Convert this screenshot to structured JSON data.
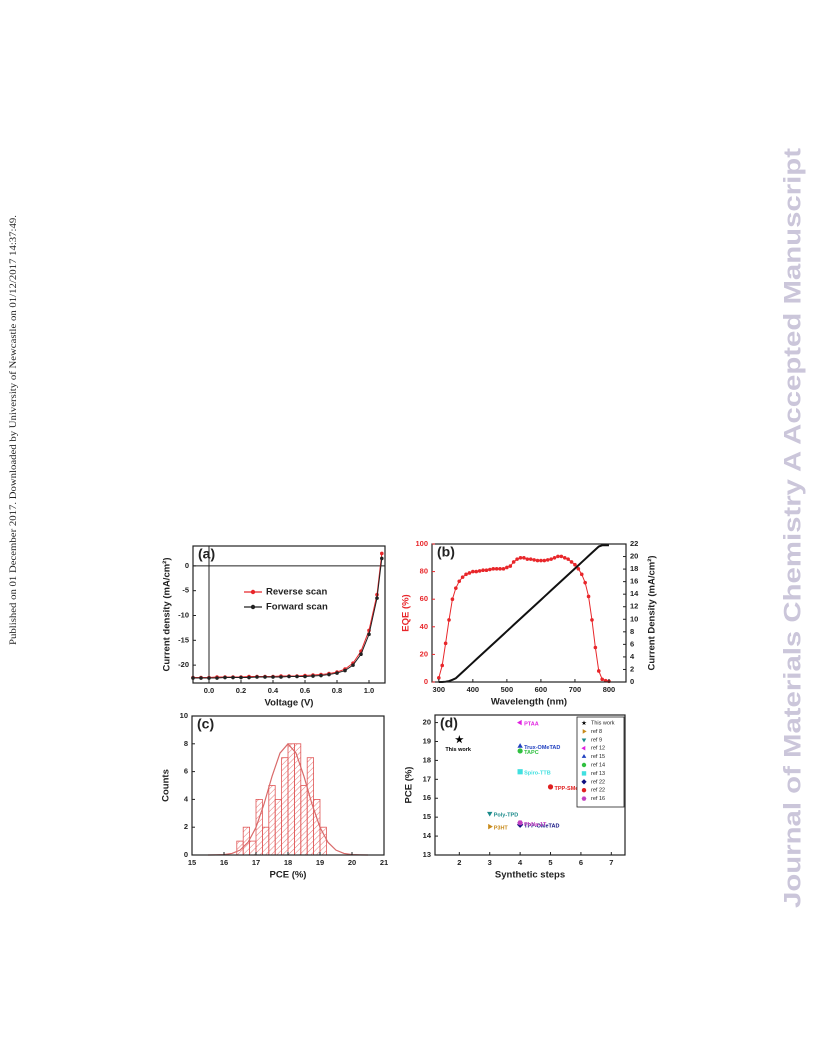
{
  "side_note": "Published on 01 December 2017. Downloaded by University of Newcastle on 01/12/2017 14:37:49.",
  "journal_watermark": "Journal of Materials Chemistry A Accepted Manuscript",
  "chart_data": [
    {
      "type": "line",
      "panel_label": "(a)",
      "x_label": "Voltage (V)",
      "y_label": "Current density (mA/cm²)",
      "x": [
        -0.1,
        -0.05,
        0,
        0.05,
        0.1,
        0.15,
        0.2,
        0.25,
        0.3,
        0.35,
        0.4,
        0.45,
        0.5,
        0.55,
        0.6,
        0.65,
        0.7,
        0.75,
        0.8,
        0.85,
        0.9,
        0.95,
        1.0,
        1.05,
        1.08
      ],
      "series": [
        {
          "name": "Reverse scan",
          "color": "#e8262a",
          "marker": "circle",
          "values": [
            -22.5,
            -22.5,
            -22.5,
            -22.4,
            -22.4,
            -22.4,
            -22.4,
            -22.3,
            -22.3,
            -22.3,
            -22.3,
            -22.2,
            -22.2,
            -22.2,
            -22.1,
            -22.0,
            -21.9,
            -21.7,
            -21.4,
            -20.8,
            -19.6,
            -17.2,
            -13.0,
            -5.8,
            2.5
          ]
        },
        {
          "name": "Forward scan",
          "color": "#222222",
          "marker": "circle",
          "values": [
            -22.6,
            -22.6,
            -22.6,
            -22.6,
            -22.5,
            -22.5,
            -22.5,
            -22.5,
            -22.4,
            -22.4,
            -22.4,
            -22.4,
            -22.3,
            -22.3,
            -22.3,
            -22.2,
            -22.1,
            -21.9,
            -21.6,
            -21.1,
            -20.0,
            -17.8,
            -13.8,
            -6.5,
            1.5
          ]
        }
      ],
      "xlim": [
        -0.1,
        1.1
      ],
      "xticks": [
        {
          "value": 0,
          "label": "0.0"
        },
        {
          "value": 0.2,
          "label": "0.2"
        },
        {
          "value": 0.4,
          "label": "0.4"
        },
        {
          "value": 0.6,
          "label": "0.6"
        },
        {
          "value": 0.8,
          "label": "0.8"
        },
        {
          "value": 1,
          "label": "1.0"
        }
      ],
      "ylim": [
        -23.6,
        4
      ],
      "yticks": [
        -20,
        -15,
        -10,
        -5,
        0
      ],
      "legend": "upper center"
    },
    {
      "type": "line",
      "panel_label": "(b)",
      "x_label": "Wavelength (nm)",
      "y_label": "EQE (%)",
      "y2_label": "Current Density (mA/cm²)",
      "x": [
        300,
        310,
        320,
        330,
        340,
        350,
        360,
        370,
        380,
        390,
        400,
        410,
        420,
        430,
        440,
        450,
        460,
        470,
        480,
        490,
        500,
        510,
        520,
        530,
        540,
        550,
        560,
        570,
        580,
        590,
        600,
        610,
        620,
        630,
        640,
        650,
        660,
        670,
        680,
        690,
        700,
        710,
        720,
        730,
        740,
        750,
        760,
        770,
        780,
        790,
        800
      ],
      "series": [
        {
          "color": "#e8262a",
          "marker": "circle",
          "values": [
            3,
            12,
            28,
            45,
            60,
            68,
            73,
            76,
            78,
            79,
            80,
            80,
            80.5,
            81,
            81,
            81.5,
            82,
            82,
            82,
            82,
            83,
            84,
            87,
            89,
            90,
            90,
            89,
            89,
            88.5,
            88,
            88,
            88,
            88.5,
            89,
            90,
            91,
            91,
            90,
            89,
            87,
            85,
            82,
            78,
            72,
            62,
            45,
            25,
            8,
            2,
            1,
            0.5
          ]
        },
        {
          "color": "#111111",
          "axis": "y2",
          "values": [
            0,
            0,
            0.05,
            0.15,
            0.35,
            0.6,
            1.1,
            1.6,
            2.1,
            2.6,
            3.1,
            3.6,
            4.1,
            4.6,
            5.1,
            5.6,
            6.1,
            6.6,
            7.1,
            7.6,
            8.1,
            8.6,
            9.1,
            9.6,
            10.1,
            10.6,
            11.1,
            11.6,
            12.1,
            12.6,
            13.1,
            13.6,
            14.1,
            14.6,
            15.1,
            15.6,
            16.1,
            16.6,
            17.1,
            17.6,
            18.1,
            18.6,
            19.1,
            19.6,
            20.1,
            20.6,
            21.1,
            21.6,
            21.8,
            21.8,
            21.8
          ]
        }
      ],
      "xlim": [
        280,
        850
      ],
      "xticks": [
        300,
        400,
        500,
        600,
        700,
        800
      ],
      "ylim": [
        0,
        100
      ],
      "yticks": [
        0,
        20,
        40,
        60,
        80,
        100
      ],
      "y2lim": [
        0,
        22
      ],
      "y2ticks": [
        0,
        2,
        4,
        6,
        8,
        10,
        12,
        14,
        16,
        18,
        20,
        22
      ]
    },
    {
      "type": "histogram",
      "panel_label": "(c)",
      "x_label": "PCE (%)",
      "y_label": "Counts",
      "bins": [
        16.4,
        16.6,
        16.8,
        17.0,
        17.2,
        17.4,
        17.6,
        17.8,
        18.0,
        18.2,
        18.4,
        18.6,
        18.8,
        19.0,
        19.2
      ],
      "values": [
        1,
        2,
        1,
        4,
        2,
        5,
        4,
        7,
        8,
        8,
        5,
        7,
        4,
        2
      ],
      "color": "#e05555",
      "fit": {
        "color": "#d96a6a",
        "x": [
          15.5,
          15.75,
          16,
          16.25,
          16.5,
          16.75,
          17,
          17.25,
          17.5,
          17.75,
          18,
          18.25,
          18.5,
          18.75,
          19,
          19.25,
          19.5,
          19.75,
          20,
          20.25,
          20.5
        ],
        "values": [
          0,
          0.01,
          0.03,
          0.11,
          0.35,
          0.91,
          1.99,
          3.66,
          5.65,
          7.33,
          8,
          7.33,
          5.65,
          3.66,
          1.99,
          0.91,
          0.35,
          0.11,
          0.03,
          0.01,
          0
        ]
      },
      "xlim": [
        15,
        21
      ],
      "xticks": [
        15,
        16,
        17,
        18,
        19,
        20,
        21
      ],
      "ylim": [
        0,
        10
      ],
      "yticks": [
        0,
        2,
        4,
        6,
        8,
        10
      ]
    },
    {
      "type": "scatter",
      "panel_label": "(d)",
      "x_label": "Synthetic steps",
      "y_label": "PCE (%)",
      "series": [
        {
          "name": "This work",
          "color": "#000000",
          "marker": "star",
          "x": [
            2
          ],
          "values": [
            19.1
          ],
          "labels": [
            "This work"
          ]
        },
        {
          "name": "ref 8",
          "color": "#c88a1a",
          "marker": "triangle-right",
          "x": [
            3
          ],
          "values": [
            14.5
          ],
          "labels": [
            "P3HT"
          ]
        },
        {
          "name": "ref 9",
          "color": "#1a8a8a",
          "marker": "triangle-down",
          "x": [
            3
          ],
          "values": [
            15.2
          ],
          "labels": [
            "Poly-TPD"
          ]
        },
        {
          "name": "ref 12",
          "color": "#e020e0",
          "marker": "triangle-left",
          "x": [
            4
          ],
          "values": [
            20.0
          ],
          "labels": [
            "PTAA"
          ]
        },
        {
          "name": "ref 15",
          "color": "#2040c0",
          "marker": "triangle-up",
          "x": [
            4
          ],
          "values": [
            18.75
          ],
          "labels": [
            "Trux-OMeTAD"
          ]
        },
        {
          "name": "ref 14",
          "color": "#30c040",
          "marker": "circle",
          "x": [
            4
          ],
          "values": [
            18.5
          ],
          "labels": [
            "TAPC"
          ]
        },
        {
          "name": "ref 13",
          "color": "#40e0e0",
          "marker": "square",
          "x": [
            4
          ],
          "values": [
            17.4
          ],
          "labels": [
            "Spiro-TTB"
          ]
        },
        {
          "name": "ref 22",
          "color": "#101080",
          "marker": "diamond",
          "x": [
            4
          ],
          "values": [
            14.6
          ],
          "labels": [
            "TPP-OMeTAD"
          ]
        },
        {
          "name": "ref 22",
          "color": "#e02020",
          "marker": "circle",
          "x": [
            5
          ],
          "values": [
            16.6
          ],
          "labels": [
            "TPP-SMeTAD"
          ]
        },
        {
          "name": "ref 16",
          "color": "#c040c0",
          "marker": "hexagon",
          "x": [
            4
          ],
          "values": [
            14.7
          ],
          "labels": [
            "PhNa-1T"
          ]
        }
      ],
      "xlim": [
        1.2,
        7.45
      ],
      "xticks": [
        2,
        3,
        4,
        5,
        6,
        7
      ],
      "ylim": [
        13,
        20.4
      ],
      "yticks": [
        13,
        14,
        15,
        16,
        17,
        18,
        19,
        20
      ],
      "legend": "upper right"
    }
  ]
}
